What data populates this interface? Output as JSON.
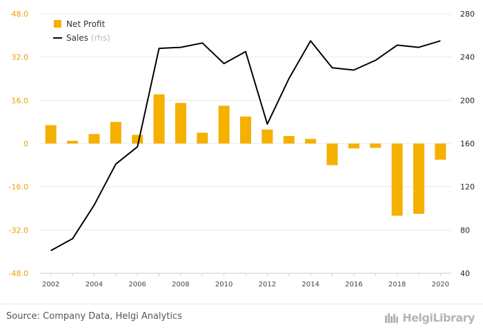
{
  "chart_data": {
    "type": "bar+line",
    "title": "",
    "x": [
      "2002",
      "2003",
      "2004",
      "2005",
      "2006",
      "2007",
      "2008",
      "2009",
      "2010",
      "2011",
      "2012",
      "2013",
      "2014",
      "2015",
      "2016",
      "2017",
      "2018",
      "2019",
      "2020"
    ],
    "xtick_labels": [
      "2002",
      "2004",
      "2006",
      "2008",
      "2010",
      "2012",
      "2014",
      "2016",
      "2018",
      "2020"
    ],
    "y_left": {
      "ylim": [
        -48,
        48
      ],
      "ticks": [
        -48,
        -32,
        -16,
        0,
        16,
        32,
        48
      ],
      "tick_labels": [
        "-48.0",
        "-32.0",
        "-16.0",
        "0",
        "16.0",
        "32.0",
        "48.0"
      ]
    },
    "y_right": {
      "ylim": [
        40,
        280
      ],
      "ticks": [
        40,
        80,
        120,
        160,
        200,
        240,
        280
      ],
      "tick_labels": [
        "40",
        "80",
        "120",
        "160",
        "200",
        "240",
        "280"
      ]
    },
    "series": [
      {
        "name": "Net Profit",
        "type": "bar",
        "axis": "left",
        "color": "#F5B000",
        "values": [
          6.8,
          1.0,
          3.5,
          8.0,
          3.2,
          18.2,
          15.0,
          4.0,
          14.0,
          10.0,
          5.2,
          2.8,
          1.7,
          -8.0,
          -1.8,
          -1.6,
          -26.7,
          -26.0,
          -6.0
        ]
      },
      {
        "name": "Sales",
        "type": "line",
        "axis": "right",
        "color": "#000000",
        "values": [
          61,
          72,
          103,
          141,
          157,
          248,
          249,
          253,
          234,
          245,
          178,
          220,
          255,
          230,
          228,
          237,
          251,
          249,
          255
        ]
      }
    ],
    "legend": {
      "position": "top-left",
      "items": [
        {
          "label": "Net Profit",
          "suffix": ""
        },
        {
          "label": "Sales",
          "suffix": "(rhs)"
        }
      ]
    },
    "grid": true
  },
  "footer": {
    "source": "Source: Company Data, Helgi Analytics",
    "brand": "HelgiLibrary"
  },
  "colors": {
    "bar": "#F5B000",
    "line": "#000000",
    "left_tick": "#E8A000",
    "grid": "#e9e9e9"
  }
}
